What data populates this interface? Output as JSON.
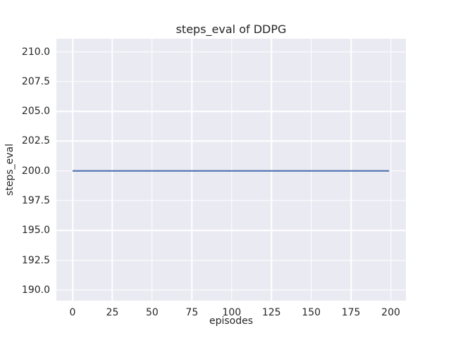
{
  "chart_data": {
    "type": "line",
    "title": "steps_eval of DDPG",
    "xlabel": "episodes",
    "ylabel": "steps_eval",
    "xlim": [
      -10.2,
      209.5
    ],
    "ylim": [
      189.1,
      211.1
    ],
    "x_ticks": [
      0,
      25,
      50,
      75,
      100,
      125,
      150,
      175,
      200
    ],
    "x_tick_labels": [
      "0",
      "25",
      "50",
      "75",
      "100",
      "125",
      "150",
      "175",
      "200"
    ],
    "y_ticks": [
      190.0,
      192.5,
      195.0,
      197.5,
      200.0,
      202.5,
      205.0,
      207.5,
      210.0
    ],
    "y_tick_labels": [
      "190.0",
      "192.5",
      "195.0",
      "197.5",
      "200.0",
      "202.5",
      "205.0",
      "207.5",
      "210.0"
    ],
    "grid": true,
    "legend": "none",
    "series": [
      {
        "name": "steps_eval",
        "color": "#4c72b0",
        "x": [
          0,
          199
        ],
        "y": [
          200,
          200
        ]
      }
    ],
    "style": {
      "fig_bg": "#ffffff",
      "plot_bg": "#eaeaf2",
      "grid_color": "#ffffff",
      "text_color": "#262626",
      "line_width": 2.2
    }
  }
}
